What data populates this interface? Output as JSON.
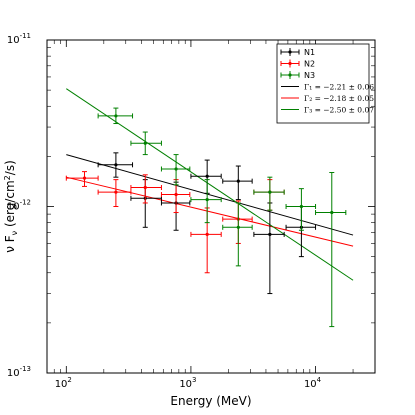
{
  "chart_data": {
    "type": "scatter",
    "title": "",
    "xlabel": "Energy (MeV)",
    "ylabel": "ν F_ν (erg/cm²/s)",
    "xscale": "log",
    "yscale": "log",
    "xlim": [
      70,
      30000
    ],
    "ylim": [
      1e-13,
      1e-11
    ],
    "x_ticks": [
      {
        "value": 100,
        "base": "10",
        "exp": "2"
      },
      {
        "value": 1000,
        "base": "10",
        "exp": "3"
      },
      {
        "value": 10000,
        "base": "10",
        "exp": "4"
      }
    ],
    "y_ticks": [
      {
        "value": 1e-13,
        "base": "10",
        "exp": "-13"
      },
      {
        "value": 1e-12,
        "base": "10",
        "exp": "-12"
      },
      {
        "value": 1e-11,
        "base": "10",
        "exp": "-11"
      }
    ],
    "legend_position": "top-right",
    "series": [
      {
        "name": "N1",
        "color": "#000000",
        "points": [
          {
            "x": 250,
            "y": 1.78e-12,
            "xlo": 180,
            "xhi": 340,
            "ylo": 1.5e-12,
            "yhi": 2.1e-12
          },
          {
            "x": 430,
            "y": 1.12e-12,
            "xlo": 330,
            "xhi": 580,
            "ylo": 7.5e-13,
            "yhi": 1.45e-12
          },
          {
            "x": 760,
            "y": 1.05e-12,
            "xlo": 580,
            "xhi": 980,
            "ylo": 7.2e-13,
            "yhi": 1.4e-12
          },
          {
            "x": 1350,
            "y": 1.52e-12,
            "xlo": 1000,
            "xhi": 1750,
            "ylo": 1.2e-12,
            "yhi": 1.9e-12
          },
          {
            "x": 2400,
            "y": 1.42e-12,
            "xlo": 1800,
            "xhi": 3100,
            "ylo": 1.1e-12,
            "yhi": 1.75e-12
          },
          {
            "x": 4300,
            "y": 6.8e-13,
            "xlo": 3200,
            "xhi": 5600,
            "ylo": 3e-13,
            "yhi": 1.05e-12
          },
          {
            "x": 7700,
            "y": 7.5e-13,
            "xlo": 5800,
            "xhi": 10000,
            "ylo": 5e-13,
            "yhi": 1e-12
          }
        ]
      },
      {
        "name": "N2",
        "color": "#ff0000",
        "points": [
          {
            "x": 140,
            "y": 1.48e-12,
            "xlo": 100,
            "xhi": 180,
            "ylo": 1.32e-12,
            "yhi": 1.62e-12
          },
          {
            "x": 250,
            "y": 1.22e-12,
            "xlo": 180,
            "xhi": 330,
            "ylo": 1e-12,
            "yhi": 1.45e-12
          },
          {
            "x": 430,
            "y": 1.3e-12,
            "xlo": 330,
            "xhi": 580,
            "ylo": 1.05e-12,
            "yhi": 1.55e-12
          },
          {
            "x": 760,
            "y": 1.18e-12,
            "xlo": 580,
            "xhi": 980,
            "ylo": 9.2e-13,
            "yhi": 1.45e-12
          },
          {
            "x": 1350,
            "y": 6.8e-13,
            "xlo": 1000,
            "xhi": 1750,
            "ylo": 4e-13,
            "yhi": 9.8e-13
          },
          {
            "x": 2400,
            "y": 8.4e-13,
            "xlo": 1800,
            "xhi": 3100,
            "ylo": 6e-13,
            "yhi": 1.08e-12
          },
          {
            "x": 4300,
            "y": 1.22e-12,
            "xlo": 3200,
            "xhi": 5600,
            "ylo": 9.5e-13,
            "yhi": 1.45e-12
          }
        ]
      },
      {
        "name": "N3",
        "color": "#008000",
        "points": [
          {
            "x": 250,
            "y": 3.5e-12,
            "xlo": 180,
            "xhi": 340,
            "ylo": 3.15e-12,
            "yhi": 3.9e-12
          },
          {
            "x": 430,
            "y": 2.4e-12,
            "xlo": 330,
            "xhi": 580,
            "ylo": 2.05e-12,
            "yhi": 2.8e-12
          },
          {
            "x": 760,
            "y": 1.68e-12,
            "xlo": 580,
            "xhi": 980,
            "ylo": 1.35e-12,
            "yhi": 2.05e-12
          },
          {
            "x": 1350,
            "y": 1.1e-12,
            "xlo": 1000,
            "xhi": 1750,
            "ylo": 8e-13,
            "yhi": 1.45e-12
          },
          {
            "x": 2400,
            "y": 7.5e-13,
            "xlo": 1800,
            "xhi": 3100,
            "ylo": 4.4e-13,
            "yhi": 1.05e-12
          },
          {
            "x": 4300,
            "y": 1.22e-12,
            "xlo": 3200,
            "xhi": 5600,
            "ylo": 9.5e-13,
            "yhi": 1.5e-12
          },
          {
            "x": 7700,
            "y": 1e-12,
            "xlo": 5800,
            "xhi": 10000,
            "ylo": 7.2e-13,
            "yhi": 1.28e-12
          },
          {
            "x": 13500,
            "y": 9.2e-13,
            "xlo": 10000,
            "xhi": 17500,
            "ylo": 1.9e-13,
            "yhi": 1.6e-12
          }
        ]
      }
    ],
    "fits": [
      {
        "name": "Γ₁ = −2.21 ± 0.06",
        "color": "#000000",
        "index": -2.21,
        "x0": 100,
        "y0": 2.05e-12,
        "x_end": 20000
      },
      {
        "name": "Γ₂ = −2.18 ± 0.05",
        "color": "#ff0000",
        "index": -2.18,
        "x0": 100,
        "y0": 1.5e-12,
        "x_end": 20000
      },
      {
        "name": "Γ₃ = −2.50 ± 0.07",
        "color": "#008000",
        "index": -2.5,
        "x0": 100,
        "y0": 5.1e-12,
        "x_end": 20000
      }
    ]
  }
}
